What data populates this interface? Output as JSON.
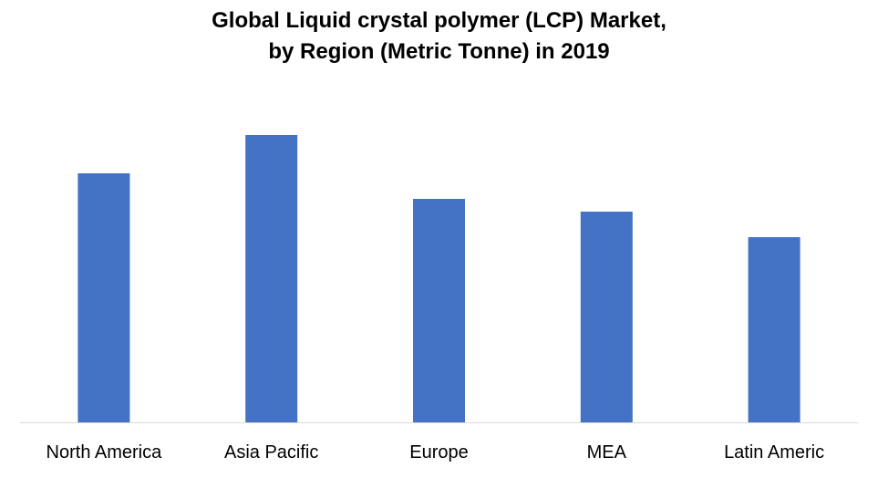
{
  "chart_data": {
    "type": "bar",
    "title_lines": [
      "Global Liquid crystal polymer (LCP) Market,",
      "by Region (Metric Tonne) in 2019"
    ],
    "categories": [
      "North America",
      "Asia Pacific",
      "Europe",
      "MEA",
      "Latin Americ"
    ],
    "values": [
      273,
      315,
      245,
      231,
      203
    ],
    "ylim": [
      0,
      350
    ],
    "xlabel": "",
    "ylabel": "",
    "grid": false,
    "legend": "none",
    "bar_color": "#4472C4",
    "axis_color": "#D9D9D9"
  }
}
